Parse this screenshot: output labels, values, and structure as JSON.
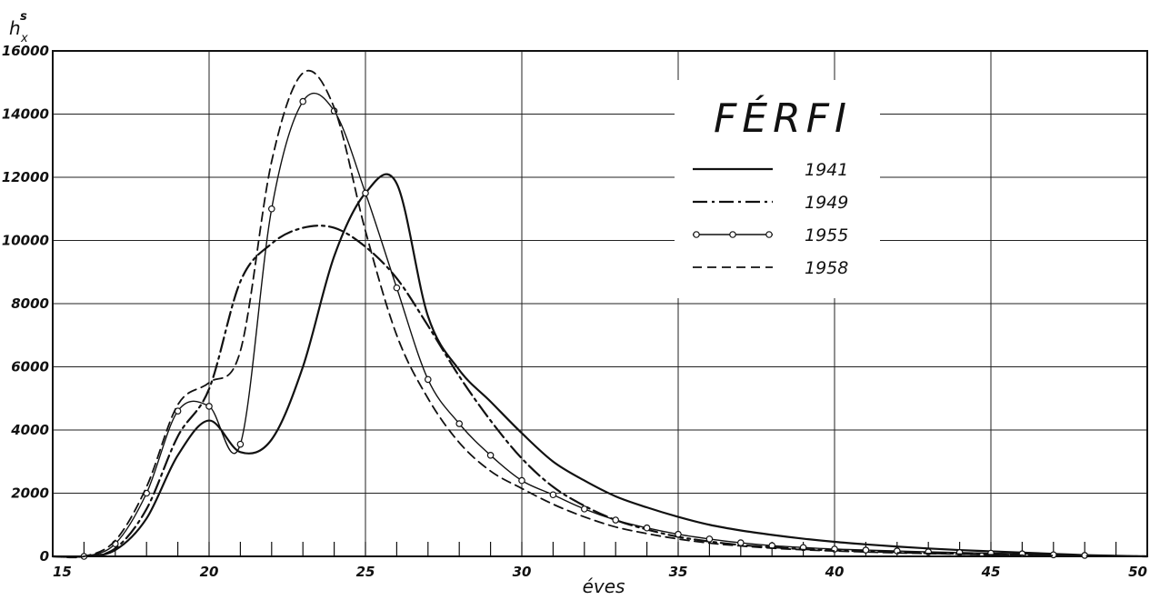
{
  "chart_data": {
    "type": "line",
    "title": "",
    "xlabel": "éves",
    "ylabel": "h",
    "ylabel_sup": "s",
    "ylabel_sub": "x",
    "xlim": [
      15,
      50
    ],
    "ylim": [
      0,
      16000
    ],
    "x_ticks": [
      15,
      20,
      25,
      30,
      35,
      40,
      45,
      50
    ],
    "y_ticks": [
      0,
      2000,
      4000,
      6000,
      8000,
      10000,
      12000,
      14000,
      16000
    ],
    "x_tick_labels": [
      "15",
      "20",
      "25",
      "30",
      "35",
      "40",
      "45",
      "50"
    ],
    "y_tick_labels": [
      "0",
      "2000",
      "4000",
      "6000",
      "8000",
      "10000",
      "12000",
      "14000",
      "16000"
    ],
    "grid": true,
    "legend": {
      "title": "FÉRFI",
      "placement": "top-right",
      "entries": [
        "1941",
        "1949",
        "1955",
        "1958"
      ]
    },
    "series": [
      {
        "name": "1941",
        "style": "solid",
        "x": [
          15,
          16,
          17,
          18,
          19,
          20,
          21,
          22,
          23,
          24,
          25,
          26,
          27,
          28,
          29,
          30,
          31,
          32,
          33,
          34,
          35,
          36,
          37,
          38,
          39,
          40,
          41,
          42,
          43,
          44,
          45,
          46,
          47,
          48,
          49,
          50
        ],
        "y": [
          0,
          0,
          200,
          1200,
          3200,
          4300,
          3300,
          3700,
          6000,
          9500,
          11500,
          11800,
          7600,
          5900,
          4900,
          3900,
          3000,
          2400,
          1900,
          1550,
          1250,
          1000,
          820,
          680,
          560,
          460,
          380,
          310,
          250,
          200,
          160,
          120,
          80,
          40,
          20,
          0
        ]
      },
      {
        "name": "1949",
        "style": "dash-dot",
        "x": [
          15,
          16,
          17,
          18,
          19,
          20,
          21,
          22,
          23,
          24,
          25,
          26,
          27,
          28,
          29,
          30,
          31,
          32,
          33,
          34,
          35,
          36,
          37,
          38,
          39,
          40,
          41,
          42,
          43,
          44,
          45,
          46,
          47,
          48,
          49,
          50
        ],
        "y": [
          0,
          0,
          250,
          1500,
          3800,
          5300,
          8700,
          9900,
          10400,
          10400,
          9800,
          8800,
          7300,
          5700,
          4300,
          3100,
          2200,
          1600,
          1150,
          850,
          620,
          470,
          360,
          290,
          230,
          190,
          160,
          130,
          100,
          80,
          60,
          40,
          25,
          15,
          5,
          0
        ]
      },
      {
        "name": "1955",
        "style": "circle-markers",
        "x": [
          15,
          16,
          17,
          18,
          19,
          20,
          21,
          22,
          23,
          24,
          25,
          26,
          27,
          28,
          29,
          30,
          31,
          32,
          33,
          34,
          35,
          36,
          37,
          38,
          39,
          40,
          41,
          42,
          43,
          44,
          45,
          46,
          47,
          48,
          49,
          50
        ],
        "y": [
          0,
          0,
          400,
          2000,
          4600,
          4750,
          3550,
          11000,
          14400,
          14100,
          11500,
          8500,
          5600,
          4200,
          3200,
          2400,
          1950,
          1500,
          1150,
          900,
          700,
          550,
          430,
          340,
          280,
          230,
          200,
          170,
          140,
          120,
          100,
          80,
          50,
          30,
          10,
          0
        ]
      },
      {
        "name": "1958",
        "style": "dashed",
        "x": [
          15,
          16,
          17,
          18,
          19,
          20,
          21,
          22,
          23,
          24,
          25,
          26,
          27,
          28,
          29,
          30,
          31,
          32,
          33,
          34,
          35,
          36,
          37,
          38,
          39,
          40,
          41,
          42,
          43,
          44,
          45,
          46,
          47,
          48,
          49,
          50
        ],
        "y": [
          0,
          0,
          500,
          2200,
          4800,
          5500,
          6500,
          12500,
          15300,
          14200,
          10300,
          7000,
          5000,
          3600,
          2700,
          2150,
          1650,
          1250,
          930,
          720,
          550,
          420,
          330,
          260,
          210,
          170,
          140,
          110,
          90,
          70,
          50,
          35,
          25,
          15,
          5,
          0
        ]
      }
    ]
  }
}
